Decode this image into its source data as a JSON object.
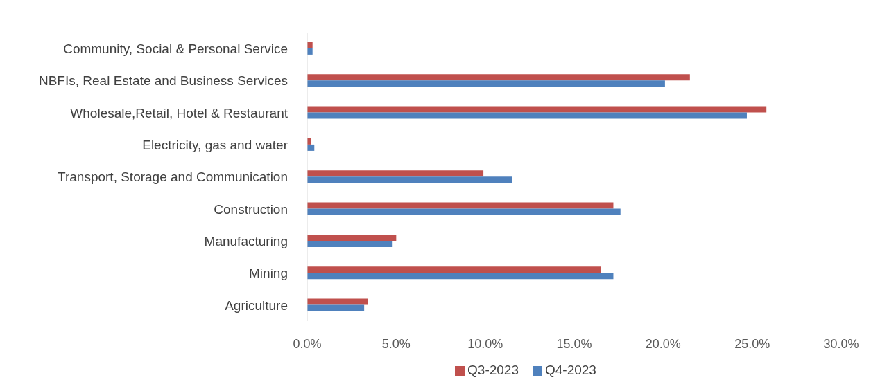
{
  "chart_data": {
    "type": "bar",
    "orientation": "horizontal",
    "categories": [
      "Community, Social & Personal Service",
      "NBFIs, Real Estate and Business Services",
      "Wholesale,Retail, Hotel & Restaurant",
      "Electricity, gas and water",
      "Transport, Storage and Communication",
      "Construction",
      "Manufacturing",
      "Mining",
      "Agriculture"
    ],
    "series": [
      {
        "name": "Q3-2023",
        "color": "#c0504d",
        "values": [
          0.3,
          21.5,
          25.8,
          0.2,
          9.9,
          17.2,
          5.0,
          16.5,
          3.4
        ]
      },
      {
        "name": "Q4-2023",
        "color": "#4f81bd",
        "values": [
          0.3,
          20.1,
          24.7,
          0.4,
          11.5,
          17.6,
          4.8,
          17.2,
          3.2
        ]
      }
    ],
    "xlim": [
      0,
      30
    ],
    "xticks": [
      {
        "value": 0,
        "label": "0.0%"
      },
      {
        "value": 5,
        "label": "5.0%"
      },
      {
        "value": 10,
        "label": "10.0%"
      },
      {
        "value": 15,
        "label": "15.0%"
      },
      {
        "value": 20,
        "label": "20.0%"
      },
      {
        "value": 25,
        "label": "25.0%"
      },
      {
        "value": 30,
        "label": "30.0%"
      }
    ],
    "grid": false,
    "legend": "bottom"
  }
}
